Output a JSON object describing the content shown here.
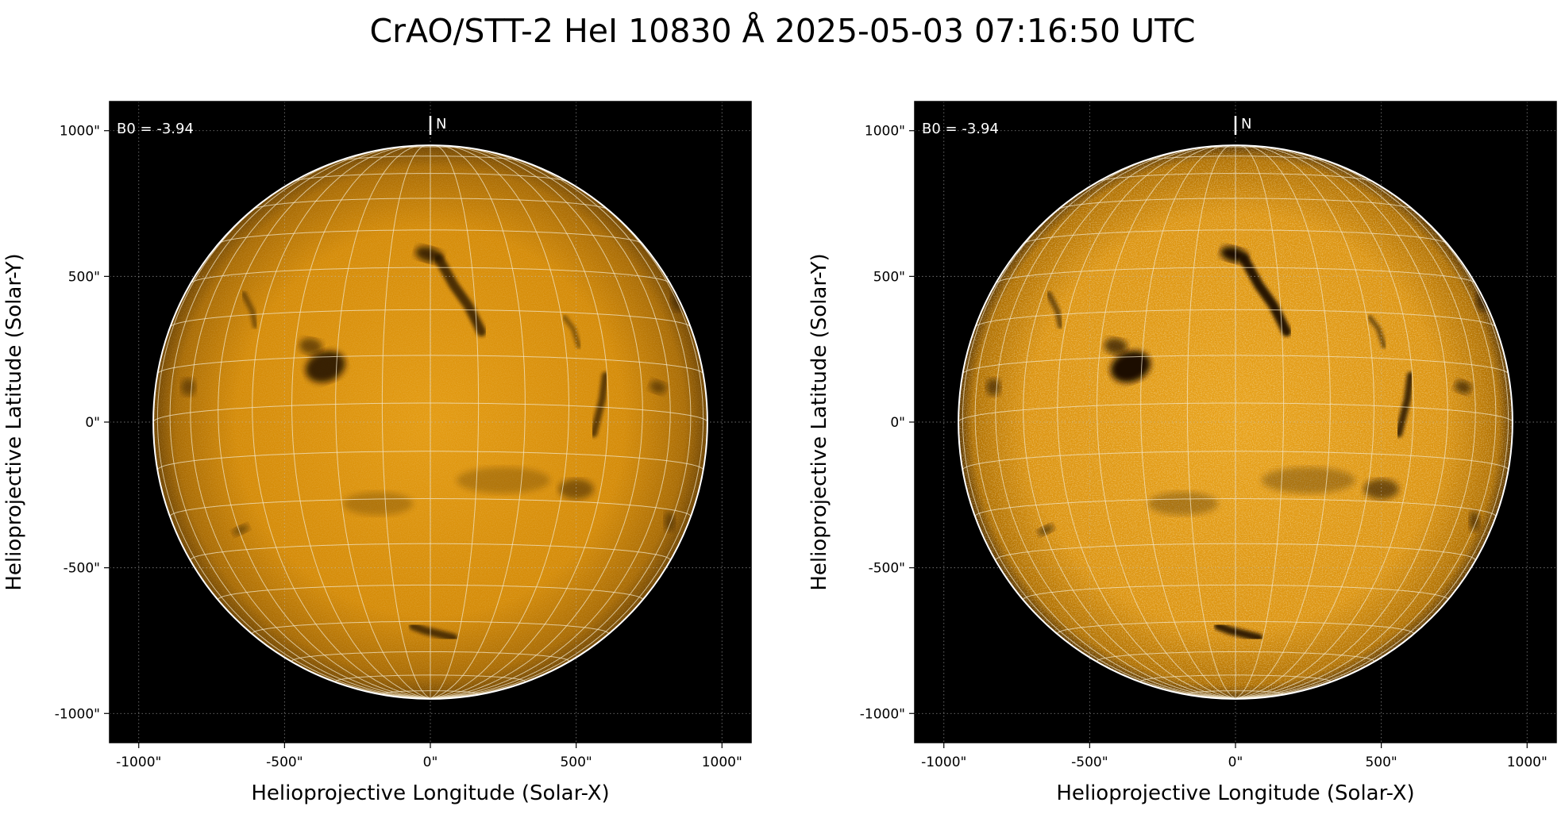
{
  "title": "CrAO/STT-2 HeI 10830 Å 2025-05-03 07:16:50 UTC",
  "chart_data": [
    {
      "type": "image",
      "panel": "left",
      "xlabel": "Helioprojective Longitude (Solar-X)",
      "ylabel": "Helioprojective Latitude (Solar-Y)",
      "xlim": [
        -1100,
        1100
      ],
      "ylim": [
        -1100,
        1100
      ],
      "xticks": [
        -1000,
        -500,
        0,
        500,
        1000
      ],
      "yticks": [
        -1000,
        -500,
        0,
        500,
        1000
      ],
      "xtick_labels": [
        "-1000\"",
        "-500\"",
        "0\"",
        "500\"",
        "1000\""
      ],
      "ytick_labels": [
        "-1000\"",
        "-500\"",
        "0\"",
        "500\"",
        "1000\""
      ],
      "annotation": "B0 = -3.94",
      "north_label": "N",
      "solar_radius_arcsec": 950,
      "grid": true,
      "colormap": "orange",
      "contrast": "normal"
    },
    {
      "type": "image",
      "panel": "right",
      "xlabel": "Helioprojective Longitude (Solar-X)",
      "ylabel": "Helioprojective Latitude (Solar-Y)",
      "xlim": [
        -1100,
        1100
      ],
      "ylim": [
        -1100,
        1100
      ],
      "xticks": [
        -1000,
        -500,
        0,
        500,
        1000
      ],
      "yticks": [
        -1000,
        -500,
        0,
        500,
        1000
      ],
      "xtick_labels": [
        "-1000\"",
        "-500\"",
        "0\"",
        "500\"",
        "1000\""
      ],
      "ytick_labels": [
        "-1000\"",
        "-500\"",
        "0\"",
        "500\"",
        "1000\""
      ],
      "annotation": "B0 = -3.94",
      "north_label": "N",
      "solar_radius_arcsec": 950,
      "grid": true,
      "colormap": "orange",
      "contrast": "enhanced"
    }
  ],
  "colors": {
    "disk_inner": "#dd9206",
    "disk_outer": "#8a5600",
    "background": "#000000",
    "limb": "#ffffff",
    "grid": "#f2e6c8",
    "feature": "#1a0f00"
  }
}
